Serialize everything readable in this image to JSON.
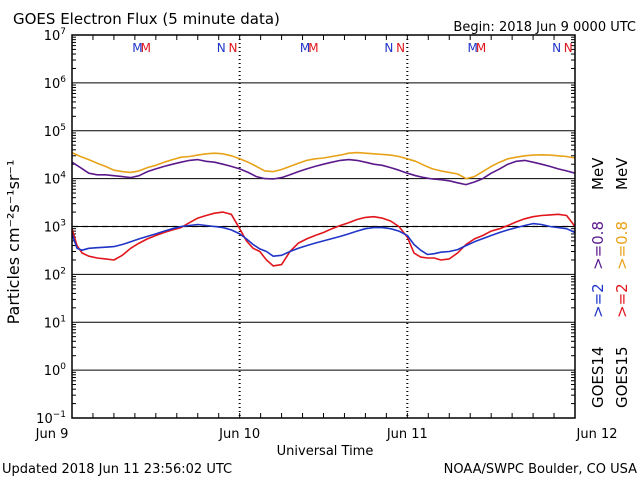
{
  "header": {
    "title": "GOES Electron Flux (5 minute data)",
    "begin": "Begin: 2018 Jun 9 0000 UTC"
  },
  "footer": {
    "updated": "Updated 2018 Jun 11 23:56:02 UTC",
    "credit": "NOAA/SWPC Boulder, CO USA"
  },
  "colors": {
    "goes14_2mev": "#1f35c8",
    "goes15_2mev": "#e0161c",
    "goes14_08mev": "#5b1a8c",
    "goes15_08mev": "#e8a218",
    "threshold": "#000000"
  },
  "markers": [
    {
      "label": "M",
      "color": "#1f35c8",
      "day": 0.39
    },
    {
      "label": "M",
      "color": "#e0161c",
      "day": 0.44
    },
    {
      "label": "N",
      "color": "#1f35c8",
      "day": 0.89
    },
    {
      "label": "N",
      "color": "#e0161c",
      "day": 0.96
    },
    {
      "label": "M",
      "color": "#1f35c8",
      "day": 1.39
    },
    {
      "label": "M",
      "color": "#e0161c",
      "day": 1.44
    },
    {
      "label": "N",
      "color": "#1f35c8",
      "day": 1.89
    },
    {
      "label": "N",
      "color": "#e0161c",
      "day": 1.96
    },
    {
      "label": "M",
      "color": "#1f35c8",
      "day": 2.39
    },
    {
      "label": "M",
      "color": "#e0161c",
      "day": 2.44
    },
    {
      "label": "N",
      "color": "#1f35c8",
      "day": 2.89
    },
    {
      "label": "N",
      "color": "#e0161c",
      "day": 2.96
    }
  ],
  "chart_data": {
    "type": "line",
    "title": "GOES Electron Flux (5 minute data)",
    "xlabel": "Universal Time",
    "ylabel": "Particles cm⁻²s⁻¹sr⁻¹",
    "x_unit": "days since 2018 Jun 9 0000 UTC",
    "x_range": [
      0,
      3
    ],
    "x_ticks": [
      {
        "day": 0,
        "label": "Jun 9"
      },
      {
        "day": 1,
        "label": "Jun 10"
      },
      {
        "day": 2,
        "label": "Jun 11"
      },
      {
        "day": 3,
        "label": "Jun 12"
      }
    ],
    "y_scale": "log",
    "y_exponents": [
      -1,
      0,
      1,
      2,
      3,
      4,
      5,
      6,
      7
    ],
    "ylim": [
      0.1,
      10000000
    ],
    "threshold": {
      "value": 1000,
      "style": "dashed"
    },
    "legend": {
      "goes14": "GOES14",
      "goes15": "GOES15",
      "ge2_14": ">=2",
      "ge2_15": ">=2",
      "ge08_14": ">=0.8",
      "ge08_15": ">=0.8",
      "unit": "MeV"
    },
    "series": [
      {
        "name": "GOES15 >=0.8 MeV",
        "color": "#e8a218",
        "x": [
          0,
          0.05,
          0.1,
          0.15,
          0.2,
          0.25,
          0.3,
          0.35,
          0.4,
          0.45,
          0.5,
          0.55,
          0.6,
          0.65,
          0.7,
          0.75,
          0.8,
          0.85,
          0.9,
          0.95,
          1.0,
          1.05,
          1.1,
          1.15,
          1.2,
          1.25,
          1.3,
          1.35,
          1.4,
          1.45,
          1.5,
          1.55,
          1.6,
          1.65,
          1.7,
          1.75,
          1.8,
          1.85,
          1.9,
          1.95,
          2.0,
          2.05,
          2.1,
          2.15,
          2.2,
          2.25,
          2.3,
          2.35,
          2.4,
          2.45,
          2.5,
          2.55,
          2.6,
          2.65,
          2.7,
          2.75,
          2.8,
          2.85,
          2.9,
          2.95,
          3.0
        ],
        "y": [
          35000,
          29000,
          25000,
          21000,
          18000,
          15000,
          14000,
          13500,
          14500,
          17000,
          19000,
          22000,
          25000,
          28000,
          29000,
          31000,
          33000,
          34000,
          33000,
          30000,
          26000,
          22000,
          18000,
          14500,
          14000,
          15500,
          18000,
          21000,
          24000,
          26000,
          27000,
          29000,
          31000,
          34000,
          35000,
          34000,
          33000,
          32000,
          31000,
          29000,
          26000,
          23000,
          19000,
          16000,
          14500,
          13500,
          12500,
          10000,
          11000,
          14000,
          18000,
          22000,
          26000,
          28000,
          30000,
          31000,
          31500,
          31000,
          30000,
          29000,
          27000
        ]
      },
      {
        "name": "GOES14 >=0.8 MeV",
        "color": "#5b1a8c",
        "x": [
          0,
          0.05,
          0.1,
          0.15,
          0.2,
          0.25,
          0.3,
          0.35,
          0.4,
          0.45,
          0.5,
          0.55,
          0.6,
          0.65,
          0.7,
          0.75,
          0.8,
          0.85,
          0.9,
          0.95,
          1.0,
          1.05,
          1.1,
          1.15,
          1.2,
          1.25,
          1.3,
          1.35,
          1.4,
          1.45,
          1.5,
          1.55,
          1.6,
          1.65,
          1.7,
          1.75,
          1.8,
          1.85,
          1.9,
          1.95,
          2.0,
          2.05,
          2.1,
          2.15,
          2.2,
          2.25,
          2.3,
          2.35,
          2.4,
          2.45,
          2.5,
          2.55,
          2.6,
          2.65,
          2.7,
          2.75,
          2.8,
          2.85,
          2.9,
          2.95,
          3.0
        ],
        "y": [
          22000,
          17000,
          13000,
          12000,
          12000,
          11500,
          11000,
          10500,
          11500,
          14000,
          16000,
          18000,
          20000,
          22000,
          24000,
          25000,
          23000,
          22000,
          20000,
          18000,
          16000,
          13500,
          11000,
          10000,
          9800,
          10500,
          12000,
          14000,
          16000,
          18000,
          20000,
          22000,
          24000,
          25000,
          24000,
          22000,
          20000,
          19000,
          17000,
          15000,
          13000,
          11500,
          10500,
          9800,
          9500,
          9000,
          8200,
          7500,
          8500,
          10000,
          13000,
          16000,
          20000,
          23000,
          24000,
          22000,
          20000,
          18000,
          16000,
          14500,
          13000
        ]
      },
      {
        "name": "GOES15 >=2 MeV",
        "color": "#e0161c",
        "x": [
          0,
          0.03,
          0.06,
          0.1,
          0.15,
          0.2,
          0.25,
          0.3,
          0.35,
          0.4,
          0.45,
          0.5,
          0.55,
          0.6,
          0.65,
          0.7,
          0.75,
          0.8,
          0.85,
          0.9,
          0.95,
          1.0,
          1.04,
          1.08,
          1.12,
          1.16,
          1.2,
          1.25,
          1.3,
          1.35,
          1.4,
          1.45,
          1.5,
          1.55,
          1.6,
          1.65,
          1.7,
          1.75,
          1.8,
          1.85,
          1.9,
          1.95,
          2.0,
          2.04,
          2.08,
          2.12,
          2.16,
          2.2,
          2.25,
          2.3,
          2.35,
          2.4,
          2.45,
          2.5,
          2.55,
          2.6,
          2.65,
          2.7,
          2.75,
          2.8,
          2.85,
          2.9,
          2.95,
          3.0
        ],
        "y": [
          900,
          400,
          280,
          240,
          220,
          210,
          200,
          250,
          350,
          450,
          550,
          650,
          750,
          850,
          950,
          1200,
          1500,
          1700,
          1900,
          2000,
          1800,
          900,
          500,
          350,
          300,
          200,
          150,
          160,
          300,
          450,
          550,
          650,
          750,
          900,
          1050,
          1200,
          1400,
          1550,
          1600,
          1500,
          1300,
          1000,
          600,
          280,
          230,
          220,
          220,
          200,
          210,
          280,
          420,
          550,
          650,
          800,
          900,
          1050,
          1250,
          1450,
          1600,
          1700,
          1750,
          1800,
          1700,
          1000
        ]
      },
      {
        "name": "GOES14 >=2 MeV",
        "color": "#1f35c8",
        "x": [
          0,
          0.03,
          0.06,
          0.1,
          0.15,
          0.2,
          0.25,
          0.3,
          0.35,
          0.4,
          0.45,
          0.5,
          0.55,
          0.6,
          0.65,
          0.7,
          0.75,
          0.8,
          0.85,
          0.9,
          0.95,
          1.0,
          1.04,
          1.08,
          1.12,
          1.16,
          1.2,
          1.25,
          1.3,
          1.35,
          1.4,
          1.45,
          1.5,
          1.55,
          1.6,
          1.65,
          1.7,
          1.75,
          1.8,
          1.85,
          1.9,
          1.95,
          2.0,
          2.04,
          2.08,
          2.12,
          2.16,
          2.2,
          2.25,
          2.3,
          2.35,
          2.4,
          2.45,
          2.5,
          2.55,
          2.6,
          2.65,
          2.7,
          2.75,
          2.8,
          2.85,
          2.9,
          2.95,
          3.0
        ],
        "y": [
          700,
          350,
          320,
          350,
          360,
          370,
          380,
          420,
          480,
          550,
          620,
          700,
          800,
          900,
          1000,
          1050,
          1100,
          1050,
          1000,
          950,
          850,
          700,
          550,
          420,
          340,
          300,
          240,
          250,
          300,
          350,
          400,
          450,
          500,
          560,
          620,
          700,
          800,
          900,
          950,
          950,
          900,
          800,
          650,
          420,
          320,
          260,
          270,
          290,
          300,
          330,
          400,
          480,
          560,
          650,
          750,
          850,
          950,
          1050,
          1150,
          1100,
          1000,
          950,
          900,
          750
        ]
      }
    ]
  }
}
